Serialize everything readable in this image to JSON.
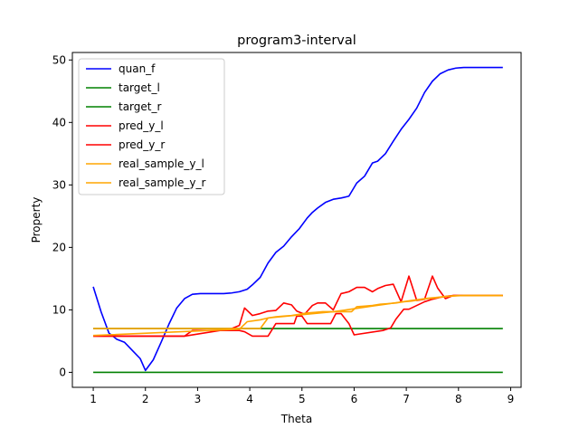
{
  "chart_data": {
    "type": "line",
    "title": "program3-interval",
    "xlabel": "Theta",
    "ylabel": "Property",
    "xlim": [
      0.6,
      9.2
    ],
    "ylim": [
      -2.4,
      51.2
    ],
    "xticks": [
      1,
      2,
      3,
      4,
      5,
      6,
      7,
      8,
      9
    ],
    "yticks": [
      0,
      10,
      20,
      30,
      40,
      50
    ],
    "grid": false,
    "legend_position": "top-left",
    "series": [
      {
        "name": "quan_f",
        "color": "#0000ff",
        "x": [
          1.0,
          1.15,
          1.3,
          1.45,
          1.6,
          1.75,
          1.9,
          2.0,
          2.15,
          2.3,
          2.45,
          2.6,
          2.75,
          2.9,
          3.05,
          3.2,
          3.35,
          3.5,
          3.65,
          3.8,
          3.95,
          4.05,
          4.2,
          4.35,
          4.5,
          4.65,
          4.8,
          4.95,
          5.1,
          5.2,
          5.3,
          5.45,
          5.6,
          5.75,
          5.9,
          6.05,
          6.2,
          6.35,
          6.45,
          6.6,
          6.75,
          6.9,
          7.05,
          7.2,
          7.35,
          7.5,
          7.65,
          7.8,
          7.95,
          8.1,
          8.25,
          8.4,
          8.55,
          8.7,
          8.85
        ],
        "y": [
          13.7,
          9.7,
          6.3,
          5.3,
          4.8,
          3.5,
          2.2,
          0.3,
          2.0,
          4.8,
          7.7,
          10.3,
          11.8,
          12.5,
          12.6,
          12.6,
          12.6,
          12.6,
          12.7,
          12.9,
          13.3,
          14.0,
          15.2,
          17.5,
          19.2,
          20.2,
          21.7,
          23.0,
          24.7,
          25.6,
          26.3,
          27.2,
          27.7,
          27.9,
          28.2,
          30.3,
          31.4,
          33.5,
          33.8,
          35.0,
          37.0,
          38.9,
          40.5,
          42.3,
          44.8,
          46.6,
          47.8,
          48.4,
          48.7,
          48.8,
          48.8,
          48.8,
          48.8,
          48.8,
          48.8
        ]
      },
      {
        "name": "target_l",
        "color": "#008000",
        "x": [
          1.0,
          8.85
        ],
        "y": [
          0.0,
          0.0
        ]
      },
      {
        "name": "target_r",
        "color": "#008000",
        "x": [
          1.0,
          8.85
        ],
        "y": [
          7.0,
          7.0
        ]
      },
      {
        "name": "pred_y_l",
        "color": "#ff0000",
        "x": [
          1.0,
          2.75,
          2.9,
          3.8,
          3.9,
          4.05,
          4.35,
          4.5,
          4.85,
          4.9,
          5.0,
          5.1,
          5.2,
          5.55,
          5.65,
          5.75,
          5.9,
          6.0,
          6.55,
          6.7,
          6.8,
          6.95,
          7.05,
          7.2,
          7.35,
          7.5,
          7.65,
          7.8,
          7.9,
          8.85
        ],
        "y": [
          5.8,
          5.8,
          6.7,
          6.7,
          6.5,
          5.8,
          5.8,
          7.8,
          7.8,
          9.0,
          9.0,
          7.8,
          7.8,
          7.8,
          9.4,
          9.4,
          7.8,
          6.0,
          6.7,
          7.1,
          8.5,
          10.1,
          10.1,
          10.7,
          11.3,
          11.7,
          12.0,
          12.2,
          12.3,
          12.3
        ]
      },
      {
        "name": "pred_y_r",
        "color": "#ff0000",
        "x": [
          1.0,
          2.5,
          2.75,
          3.65,
          3.8,
          3.9,
          4.05,
          4.2,
          4.35,
          4.5,
          4.65,
          4.8,
          4.9,
          5.05,
          5.2,
          5.3,
          5.45,
          5.6,
          5.75,
          5.9,
          6.05,
          6.2,
          6.35,
          6.45,
          6.6,
          6.75,
          6.9,
          7.05,
          7.2,
          7.35,
          7.5,
          7.6,
          7.75,
          7.9,
          8.85
        ],
        "y": [
          5.8,
          5.8,
          5.8,
          7.0,
          7.5,
          10.3,
          9.1,
          9.4,
          9.8,
          9.9,
          11.1,
          10.8,
          9.8,
          9.3,
          10.7,
          11.1,
          11.1,
          10.0,
          12.6,
          12.9,
          13.6,
          13.6,
          12.9,
          13.4,
          13.9,
          14.1,
          11.3,
          15.4,
          11.5,
          11.7,
          15.4,
          13.5,
          11.8,
          12.3,
          12.3
        ]
      },
      {
        "name": "real_sample_y_l",
        "color": "#ffa500",
        "x": [
          1.0,
          3.8,
          3.95,
          4.2,
          4.35,
          4.5,
          4.65,
          4.8,
          4.95,
          5.1,
          5.25,
          5.4,
          5.55,
          5.7,
          5.85,
          5.95,
          6.05,
          6.2,
          6.35,
          6.5,
          6.65,
          6.8,
          6.95,
          7.1,
          7.25,
          7.4,
          7.55,
          7.7,
          7.85,
          8.0,
          8.85
        ],
        "y": [
          5.9,
          6.9,
          8.1,
          8.4,
          8.7,
          8.9,
          9.0,
          9.1,
          9.3,
          9.5,
          9.6,
          9.7,
          9.7,
          9.7,
          9.7,
          9.7,
          10.5,
          10.6,
          10.7,
          10.9,
          11.0,
          11.1,
          11.3,
          11.4,
          11.6,
          11.8,
          11.9,
          12.1,
          12.2,
          12.3,
          12.3
        ]
      },
      {
        "name": "real_sample_y_r",
        "color": "#ffa500",
        "x": [
          1.0,
          3.0,
          3.15,
          4.2,
          4.35,
          4.6,
          4.85,
          5.1,
          5.35,
          5.6,
          5.85,
          6.1,
          6.35,
          6.6,
          6.85,
          7.1,
          7.35,
          7.6,
          7.85,
          8.1,
          8.85
        ],
        "y": [
          7.0,
          7.0,
          7.0,
          7.0,
          8.7,
          8.9,
          9.1,
          9.3,
          9.5,
          9.7,
          10.0,
          10.3,
          10.6,
          10.9,
          11.2,
          11.5,
          11.8,
          12.0,
          12.2,
          12.3,
          12.3
        ]
      }
    ]
  }
}
